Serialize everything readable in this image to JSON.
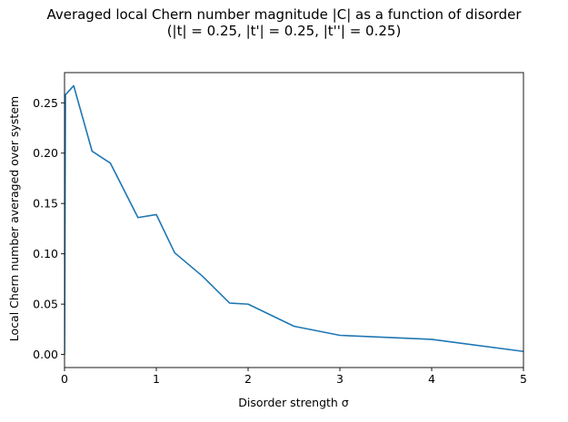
{
  "chart_data": {
    "type": "line",
    "title": "Averaged local Chern number magnitude |C| as a function of disorder",
    "subtitle": "(|t| = 0.25, |t'| = 0.25, |t''| = 0.25)",
    "xlabel": "Disorder strength σ",
    "ylabel": "Local Chern number averaged over system",
    "xlim": [
      0,
      5
    ],
    "ylim": [
      -0.013,
      0.28
    ],
    "xticks": [
      0,
      1,
      2,
      3,
      4,
      5
    ],
    "xtick_labels": [
      "0",
      "1",
      "2",
      "3",
      "4",
      "5"
    ],
    "yticks": [
      0.0,
      0.05,
      0.1,
      0.15,
      0.2,
      0.25
    ],
    "ytick_labels": [
      "0.00",
      "0.05",
      "0.10",
      "0.15",
      "0.20",
      "0.25"
    ],
    "grid": false,
    "series": [
      {
        "color": "#1f77b4",
        "x": [
          0,
          0.01,
          0.1,
          0.3,
          0.5,
          0.8,
          1.0,
          1.2,
          1.5,
          1.8,
          2.0,
          2.5,
          3.0,
          4.0,
          5.0
        ],
        "y": [
          0.0,
          0.258,
          0.267,
          0.202,
          0.19,
          0.136,
          0.139,
          0.101,
          0.078,
          0.051,
          0.05,
          0.028,
          0.019,
          0.015,
          0.003
        ]
      }
    ]
  }
}
